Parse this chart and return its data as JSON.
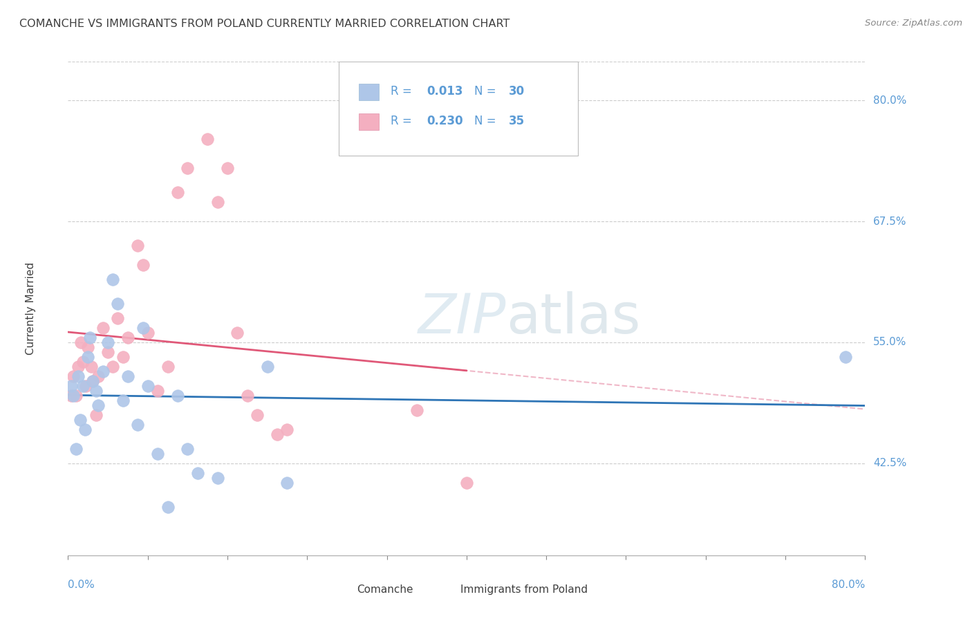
{
  "title": "COMANCHE VS IMMIGRANTS FROM POLAND CURRENTLY MARRIED CORRELATION CHART",
  "source": "Source: ZipAtlas.com",
  "ylabel": "Currently Married",
  "yticks": [
    42.5,
    55.0,
    67.5,
    80.0
  ],
  "ytick_labels": [
    "42.5%",
    "55.0%",
    "67.5%",
    "80.0%"
  ],
  "xlim": [
    0.0,
    80.0
  ],
  "ylim": [
    33.0,
    84.0
  ],
  "background_color": "#ffffff",
  "grid_color": "#cccccc",
  "title_color": "#404040",
  "axis_label_color": "#5b9bd5",
  "comanche_color": "#aec6e8",
  "poland_color": "#f4afc0",
  "comanche_edge_color": "#aec6e8",
  "poland_edge_color": "#f4afc0",
  "comanche_line_color": "#2e75b6",
  "poland_line_color": "#e05878",
  "poland_dash_color": "#f0b8c8",
  "legend_text_color": "#5b9bd5",
  "legend_R1": "R = 0.013",
  "legend_N1": "N = 30",
  "legend_R2": "R = 0.230",
  "legend_N2": "N = 35",
  "comanche_x": [
    0.3,
    0.5,
    0.8,
    1.0,
    1.2,
    1.5,
    1.7,
    2.0,
    2.2,
    2.5,
    2.8,
    3.0,
    3.5,
    4.0,
    4.5,
    5.0,
    5.5,
    6.0,
    7.0,
    7.5,
    8.0,
    9.0,
    10.0,
    11.0,
    12.0,
    13.0,
    15.0,
    20.0,
    22.0,
    78.0
  ],
  "comanche_y": [
    50.5,
    49.5,
    44.0,
    51.5,
    47.0,
    50.5,
    46.0,
    53.5,
    55.5,
    51.0,
    50.0,
    48.5,
    52.0,
    55.0,
    61.5,
    59.0,
    49.0,
    51.5,
    46.5,
    56.5,
    50.5,
    43.5,
    38.0,
    49.5,
    44.0,
    41.5,
    41.0,
    52.5,
    40.5,
    53.5
  ],
  "poland_x": [
    0.3,
    0.5,
    0.8,
    1.0,
    1.3,
    1.5,
    1.8,
    2.0,
    2.3,
    2.5,
    2.8,
    3.0,
    3.5,
    4.0,
    4.5,
    5.0,
    5.5,
    6.0,
    7.0,
    7.5,
    8.0,
    9.0,
    10.0,
    11.0,
    12.0,
    14.0,
    15.0,
    16.0,
    17.0,
    18.0,
    19.0,
    21.0,
    22.0,
    35.0,
    40.0
  ],
  "poland_y": [
    49.5,
    51.5,
    49.5,
    52.5,
    55.0,
    53.0,
    50.5,
    54.5,
    52.5,
    51.0,
    47.5,
    51.5,
    56.5,
    54.0,
    52.5,
    57.5,
    53.5,
    55.5,
    65.0,
    63.0,
    56.0,
    50.0,
    52.5,
    70.5,
    73.0,
    76.0,
    69.5,
    73.0,
    56.0,
    49.5,
    47.5,
    45.5,
    46.0,
    48.0,
    40.5
  ]
}
